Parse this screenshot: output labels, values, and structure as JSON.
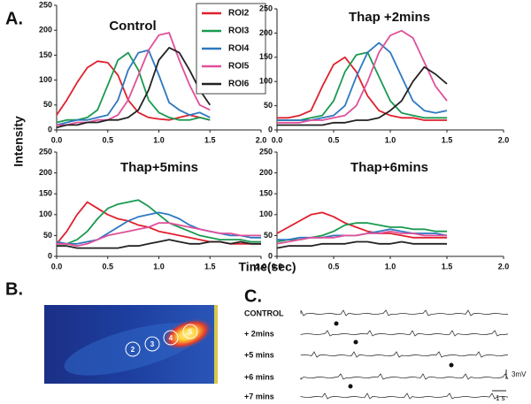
{
  "panel_labels": {
    "a": "A.",
    "b": "B.",
    "c": "C."
  },
  "y_axis_label": "Intensity",
  "x_axis_label": "Time(sec)",
  "chart_data": [
    {
      "type": "line",
      "title": "Control",
      "x": [
        0,
        0.1,
        0.2,
        0.3,
        0.4,
        0.5,
        0.6,
        0.7,
        0.8,
        0.9,
        1.0,
        1.1,
        1.2,
        1.3,
        1.4,
        1.5
      ],
      "series": [
        {
          "name": "ROI2",
          "color": "#e0202e",
          "values": [
            30,
            60,
            95,
            125,
            138,
            135,
            110,
            60,
            35,
            25,
            22,
            20,
            25,
            30,
            25,
            20
          ]
        },
        {
          "name": "ROI3",
          "color": "#1a9a50",
          "values": [
            15,
            20,
            20,
            25,
            40,
            90,
            140,
            155,
            120,
            60,
            35,
            25,
            20,
            20,
            25,
            20
          ]
        },
        {
          "name": "ROI4",
          "color": "#2e78c0",
          "values": [
            10,
            15,
            20,
            20,
            25,
            30,
            60,
            120,
            155,
            160,
            110,
            55,
            40,
            30,
            35,
            25
          ]
        },
        {
          "name": "ROI5",
          "color": "#e0509a",
          "values": [
            10,
            10,
            15,
            15,
            20,
            20,
            30,
            60,
            110,
            160,
            190,
            195,
            140,
            90,
            50,
            40
          ]
        },
        {
          "name": "ROI6",
          "color": "#222222",
          "values": [
            5,
            10,
            10,
            15,
            15,
            20,
            20,
            25,
            40,
            80,
            140,
            165,
            155,
            120,
            80,
            50
          ]
        }
      ],
      "xlim": [
        0,
        2
      ],
      "ylim": [
        0,
        250
      ],
      "xticks": [
        {
          "value": 0,
          "label": "0.0"
        },
        {
          "value": 0.5,
          "label": "0.5"
        },
        {
          "value": 1,
          "label": "1.0"
        },
        {
          "value": 1.5,
          "label": "1.5"
        },
        {
          "value": 2,
          "label": "2.0"
        }
      ],
      "yticks": [
        0,
        50,
        100,
        150,
        200,
        250
      ],
      "legend": "top-right"
    },
    {
      "type": "line",
      "title": "Thap +2mins",
      "x": [
        0,
        0.1,
        0.2,
        0.3,
        0.4,
        0.5,
        0.6,
        0.7,
        0.8,
        0.9,
        1.0,
        1.1,
        1.2,
        1.3,
        1.4,
        1.5
      ],
      "series": [
        {
          "color": "#e0202e",
          "values": [
            25,
            25,
            30,
            40,
            90,
            135,
            150,
            120,
            70,
            40,
            30,
            25,
            25,
            20,
            20,
            20
          ]
        },
        {
          "color": "#1a9a50",
          "values": [
            20,
            20,
            20,
            25,
            30,
            60,
            120,
            155,
            160,
            110,
            60,
            35,
            30,
            25,
            25,
            25
          ]
        },
        {
          "color": "#2e78c0",
          "values": [
            20,
            20,
            20,
            20,
            25,
            30,
            50,
            110,
            160,
            180,
            160,
            110,
            60,
            40,
            35,
            40
          ]
        },
        {
          "color": "#e0509a",
          "values": [
            15,
            15,
            15,
            20,
            20,
            25,
            30,
            50,
            100,
            160,
            195,
            205,
            190,
            140,
            90,
            60
          ]
        },
        {
          "color": "#222222",
          "values": [
            10,
            10,
            10,
            10,
            10,
            15,
            15,
            20,
            20,
            25,
            40,
            60,
            100,
            130,
            115,
            95
          ]
        }
      ],
      "xlim": [
        0,
        2
      ],
      "ylim": [
        0,
        250
      ],
      "xticks": [
        {
          "value": 0,
          "label": "0.0"
        },
        {
          "value": 0.5,
          "label": "0.5"
        },
        {
          "value": 1,
          "label": "1.0"
        },
        {
          "value": 1.5,
          "label": "1.5"
        },
        {
          "value": 2,
          "label": "2.0"
        }
      ],
      "yticks": [
        0,
        50,
        100,
        150,
        200,
        250
      ]
    },
    {
      "type": "line",
      "title": "Thap+5mins",
      "x": [
        0,
        0.1,
        0.2,
        0.3,
        0.4,
        0.5,
        0.6,
        0.7,
        0.8,
        0.9,
        1.0,
        1.1,
        1.2,
        1.3,
        1.4,
        1.5,
        1.6,
        1.7,
        1.8,
        1.9,
        2.0
      ],
      "series": [
        {
          "color": "#e0202e",
          "values": [
            30,
            60,
            100,
            130,
            115,
            100,
            90,
            85,
            75,
            70,
            60,
            55,
            50,
            45,
            40,
            35,
            35,
            30,
            30,
            30,
            30
          ]
        },
        {
          "color": "#1a9a50",
          "values": [
            30,
            30,
            40,
            60,
            90,
            115,
            125,
            130,
            135,
            120,
            100,
            80,
            70,
            60,
            50,
            45,
            40,
            40,
            40,
            35,
            35
          ]
        },
        {
          "color": "#2e78c0",
          "values": [
            35,
            30,
            30,
            35,
            40,
            55,
            70,
            85,
            95,
            100,
            105,
            100,
            90,
            75,
            65,
            60,
            55,
            50,
            50,
            45,
            45
          ]
        },
        {
          "color": "#e0509a",
          "values": [
            30,
            30,
            25,
            30,
            40,
            50,
            55,
            60,
            65,
            70,
            80,
            80,
            75,
            70,
            65,
            60,
            55,
            55,
            50,
            50,
            50
          ]
        },
        {
          "color": "#222222",
          "values": [
            25,
            25,
            20,
            20,
            20,
            20,
            20,
            25,
            25,
            30,
            35,
            40,
            35,
            30,
            30,
            35,
            35,
            30,
            35,
            30,
            30
          ]
        }
      ],
      "xlim": [
        0,
        2
      ],
      "ylim": [
        0,
        250
      ],
      "xticks": [
        {
          "value": 0,
          "label": "0.0"
        },
        {
          "value": 0.5,
          "label": "0.5"
        },
        {
          "value": 1,
          "label": "1.0"
        },
        {
          "value": 1.5,
          "label": "1.5"
        },
        {
          "value": 2,
          "label": "2.0"
        }
      ],
      "yticks": [
        0,
        50,
        100,
        150,
        200,
        250
      ]
    },
    {
      "type": "line",
      "title": "Thap+6mins",
      "x": [
        0,
        0.1,
        0.2,
        0.3,
        0.4,
        0.5,
        0.6,
        0.7,
        0.8,
        0.9,
        1.0,
        1.1,
        1.2,
        1.3,
        1.4,
        1.5
      ],
      "series": [
        {
          "color": "#e0202e",
          "values": [
            55,
            70,
            85,
            100,
            105,
            95,
            80,
            70,
            60,
            55,
            55,
            50,
            45,
            45,
            45,
            45
          ]
        },
        {
          "color": "#1a9a50",
          "values": [
            35,
            40,
            40,
            45,
            50,
            60,
            75,
            80,
            80,
            75,
            70,
            70,
            65,
            65,
            60,
            60
          ]
        },
        {
          "color": "#2e78c0",
          "values": [
            40,
            40,
            45,
            45,
            45,
            50,
            50,
            50,
            55,
            60,
            65,
            60,
            55,
            55,
            55,
            50
          ]
        },
        {
          "color": "#e0509a",
          "values": [
            30,
            35,
            40,
            45,
            45,
            45,
            50,
            50,
            55,
            55,
            60,
            55,
            55,
            50,
            50,
            50
          ]
        },
        {
          "color": "#222222",
          "values": [
            20,
            25,
            25,
            25,
            30,
            30,
            30,
            35,
            35,
            30,
            30,
            35,
            30,
            30,
            30,
            30
          ]
        }
      ],
      "xlim": [
        0,
        2
      ],
      "ylim": [
        0,
        250
      ],
      "xticks": [
        {
          "value": 0,
          "label": "0.0"
        },
        {
          "value": 0.5,
          "label": "0.5"
        },
        {
          "value": 1,
          "label": "1.0"
        },
        {
          "value": 1.5,
          "label": "1.5"
        },
        {
          "value": 2,
          "label": "2.0"
        }
      ],
      "yticks": [
        0,
        50,
        100,
        150,
        200,
        250
      ]
    }
  ],
  "panel_b": {
    "roi_labels": [
      "2",
      "3",
      "4",
      "5"
    ]
  },
  "panel_c": {
    "trace_labels": [
      "CONTROL",
      "+ 2mins",
      "+5 mins",
      "+6 mins",
      "+7 mins"
    ],
    "scale_voltage": "3mV",
    "scale_time": "1 s"
  }
}
